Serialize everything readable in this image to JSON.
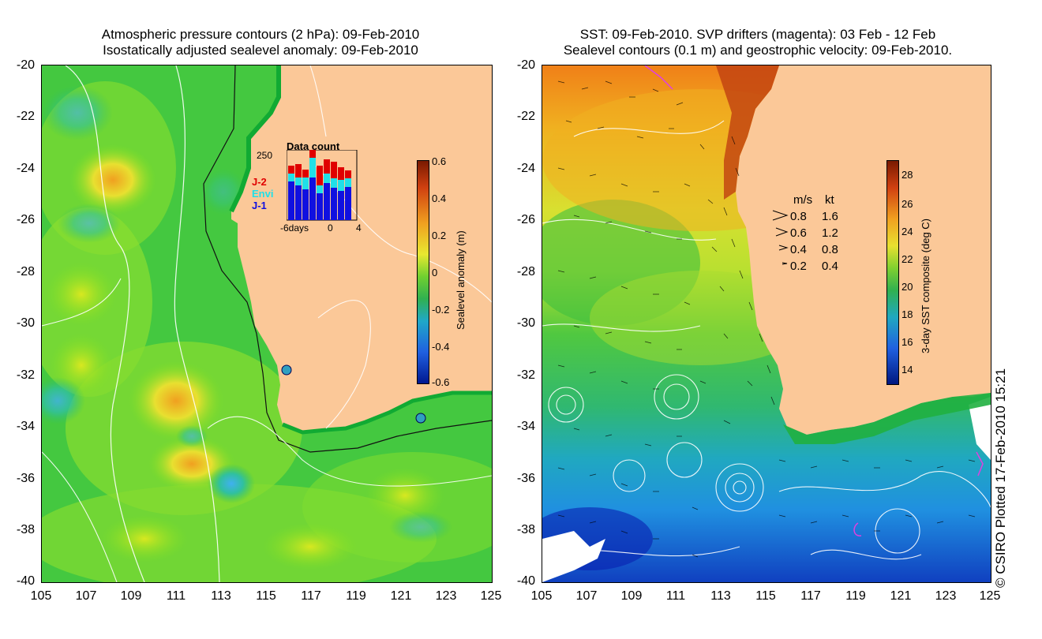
{
  "left_panel": {
    "title_line1": "Atmospheric pressure contours (2 hPa): 09-Feb-2010",
    "title_line2": "Isostatically adjusted sealevel anomaly: 09-Feb-2010",
    "y_ticks": [
      "-20",
      "-22",
      "-24",
      "-26",
      "-28",
      "-30",
      "-32",
      "-34",
      "-36",
      "-38",
      "-40"
    ],
    "x_ticks": [
      "105",
      "107",
      "109",
      "111",
      "113",
      "115",
      "117",
      "119",
      "121",
      "123",
      "125"
    ],
    "colorbar": {
      "label": "Sealevel anomaly (m)",
      "ticks": [
        "0.6",
        "0.4",
        "0.2",
        "0",
        "-0.2",
        "-0.4",
        "-0.6"
      ]
    },
    "data_count": {
      "title": "Data count",
      "max_label": "250",
      "x_labels": [
        "-6days",
        "0",
        "4"
      ],
      "legend": [
        {
          "name": "J-2",
          "color": "#e00000"
        },
        {
          "name": "Envi",
          "color": "#20e0e8"
        },
        {
          "name": "J-1",
          "color": "#1010e0"
        }
      ]
    }
  },
  "right_panel": {
    "title_line1": "SST: 09-Feb-2010. SVP drifters (magenta): 03 Feb - 12 Feb",
    "title_line2": "Sealevel contours (0.1 m) and geostrophic velocity: 09-Feb-2010.",
    "y_ticks": [
      "-20",
      "-22",
      "-24",
      "-26",
      "-28",
      "-30",
      "-32",
      "-34",
      "-36",
      "-38",
      "-40"
    ],
    "x_ticks": [
      "105",
      "107",
      "109",
      "111",
      "113",
      "115",
      "117",
      "119",
      "121",
      "123",
      "125"
    ],
    "colorbar": {
      "label": "3-day SST composite (deg C)",
      "ticks": [
        "28",
        "26",
        "24",
        "22",
        "20",
        "18",
        "16",
        "14"
      ]
    },
    "velocity_legend": {
      "header_ms": "m/s",
      "header_kt": "kt",
      "rows": [
        {
          "ms": "0.8",
          "kt": "1.6"
        },
        {
          "ms": "0.6",
          "kt": "1.2"
        },
        {
          "ms": "0.4",
          "kt": "0.8"
        },
        {
          "ms": "0.2",
          "kt": "0.4"
        }
      ]
    }
  },
  "credit": "© CSIRO Plotted 17-Feb-2010 15:21",
  "colors": {
    "land": "#fbc898",
    "coast": "#11aa33"
  }
}
